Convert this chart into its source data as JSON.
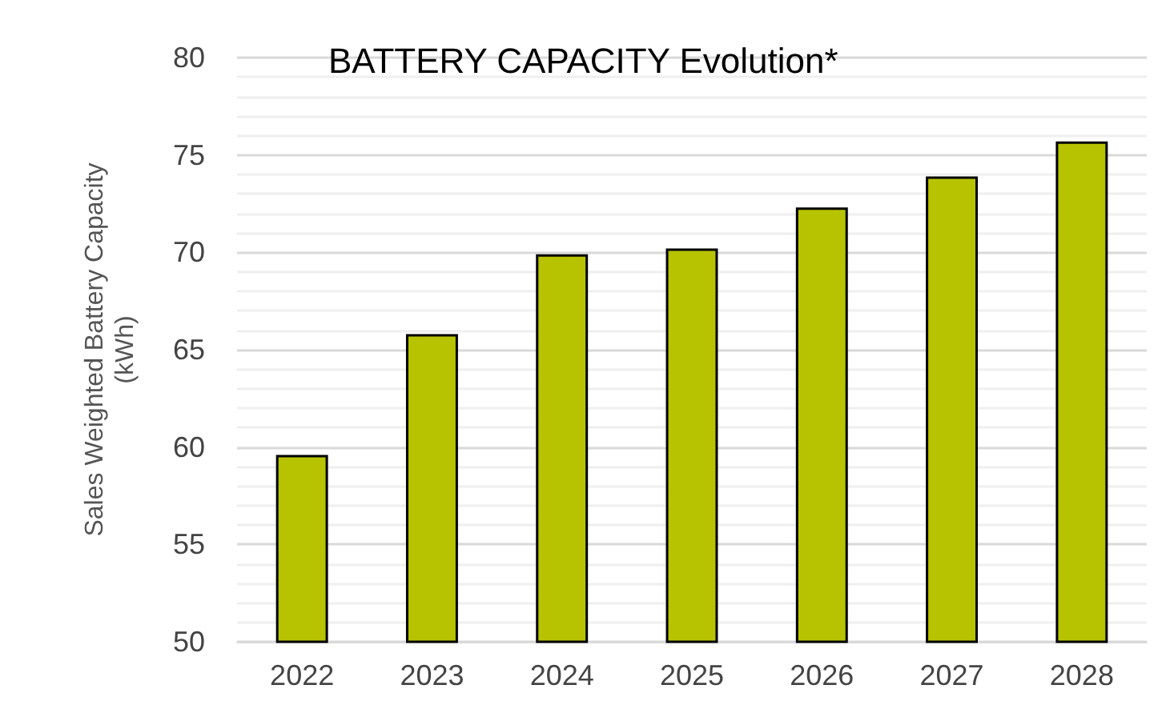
{
  "chart_data": {
    "type": "bar",
    "title": "BATTERY CAPACITY Evolution*",
    "ylabel": "Sales Weighted Battery Capacity\n(kWh)",
    "categories": [
      "2022",
      "2023",
      "2024",
      "2025",
      "2026",
      "2027",
      "2028"
    ],
    "values": [
      59.6,
      65.8,
      69.9,
      70.2,
      72.3,
      73.9,
      75.7
    ],
    "color": "#b8c300",
    "ylim": [
      50,
      80
    ],
    "yticks": [
      50,
      55,
      60,
      65,
      70,
      75,
      80
    ],
    "grid": "y"
  }
}
